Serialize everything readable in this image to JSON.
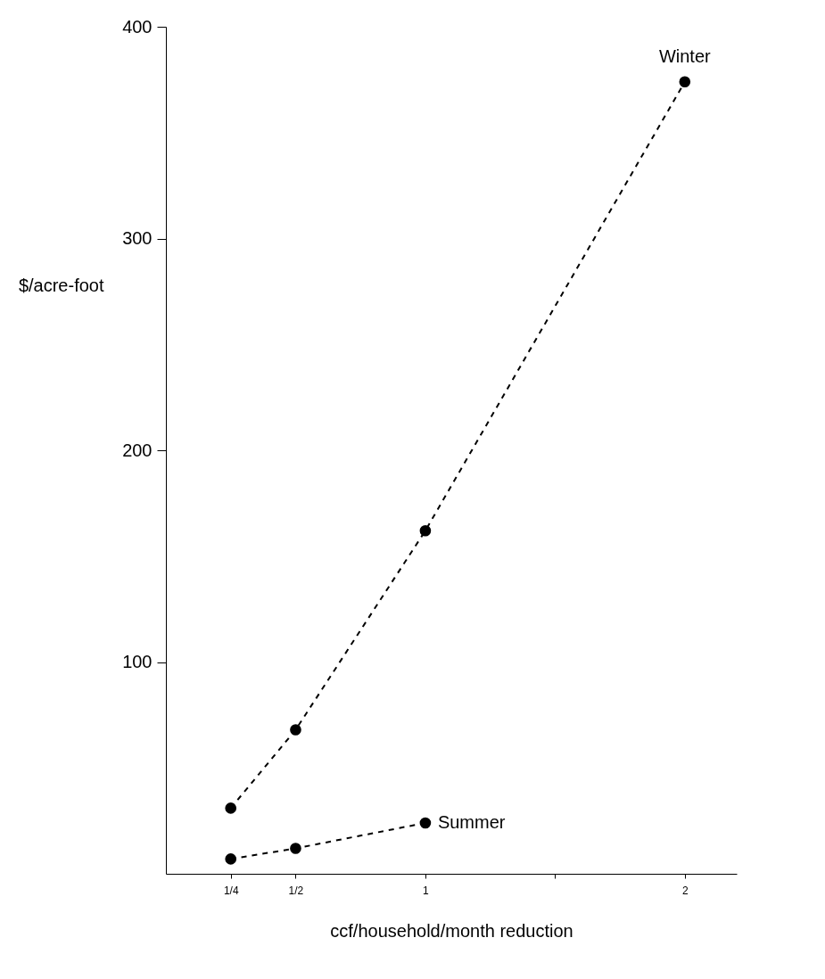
{
  "chart_data": {
    "type": "line",
    "xlabel": "ccf/household/month reduction",
    "ylabel": "$/acre-foot",
    "x": [
      0.25,
      0.5,
      1,
      2
    ],
    "series": [
      {
        "name": "Winter",
        "color": "#000000",
        "values": [
          31,
          68,
          162,
          374
        ]
      },
      {
        "name": "Summer",
        "color": "#000000",
        "x": [
          0.25,
          0.5,
          1
        ],
        "values": [
          7,
          12,
          24
        ]
      }
    ],
    "xlim": [
      0,
      2.2
    ],
    "ylim": [
      0,
      400
    ],
    "xticks": [
      {
        "value": 0.25,
        "label": "1/4"
      },
      {
        "value": 0.5,
        "label": "1/2"
      },
      1,
      {
        "value": 1.5,
        "label": null
      },
      2
    ],
    "yticks": [
      100,
      200,
      300,
      400
    ],
    "grid": false,
    "marker": "circle",
    "line_style": "dashed"
  }
}
